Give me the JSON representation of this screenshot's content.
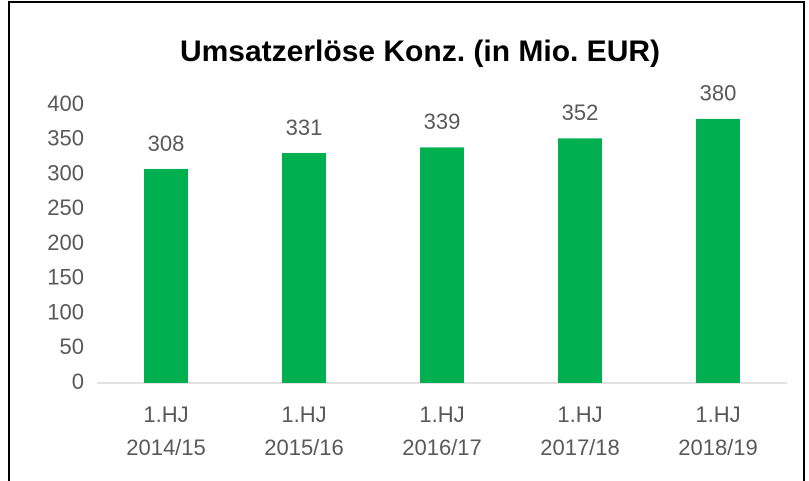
{
  "chart_data": {
    "type": "bar",
    "title": "Umsatzerlöse Konz. (in Mio. EUR)",
    "categories": [
      "1.HJ\n2014/15",
      "1.HJ\n2015/16",
      "1.HJ\n2016/17",
      "1.HJ\n2017/18",
      "1.HJ\n2018/19"
    ],
    "values": [
      308,
      331,
      339,
      352,
      380
    ],
    "color": "#00b050",
    "ylim": [
      0,
      400
    ],
    "yticks": [
      0,
      50,
      100,
      150,
      200,
      250,
      300,
      350,
      400
    ],
    "grid": false
  }
}
